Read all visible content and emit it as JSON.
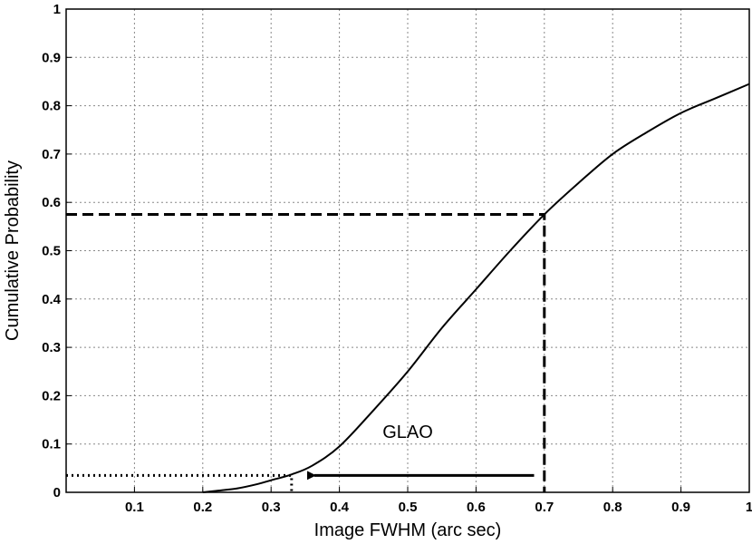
{
  "chart_data": {
    "type": "line",
    "title": "",
    "xlabel": "Image FWHM (arc sec)",
    "ylabel": "Cumulative Probability",
    "xlim": [
      0,
      1
    ],
    "ylim": [
      0,
      1
    ],
    "grid": true,
    "xticks": [
      0.1,
      0.2,
      0.3,
      0.4,
      0.5,
      0.6,
      0.7,
      0.8,
      0.9,
      1
    ],
    "xtick_labels": [
      "0.1",
      "0.2",
      "0.3",
      "0.4",
      "0.5",
      "0.6",
      "0.7",
      "0.8",
      "0.9",
      "1"
    ],
    "yticks": [
      0,
      0.1,
      0.2,
      0.3,
      0.4,
      0.5,
      0.6,
      0.7,
      0.8,
      0.9,
      1
    ],
    "ytick_labels": [
      "0",
      "0.1",
      "0.2",
      "0.3",
      "0.4",
      "0.5",
      "0.6",
      "0.7",
      "0.8",
      "0.9",
      "1"
    ],
    "series": [
      {
        "name": "",
        "x": [
          0.2,
          0.22,
          0.25,
          0.28,
          0.3,
          0.33,
          0.36,
          0.4,
          0.45,
          0.5,
          0.55,
          0.6,
          0.65,
          0.7,
          0.75,
          0.8,
          0.85,
          0.9,
          0.95,
          1.0
        ],
        "y": [
          0.0,
          0.003,
          0.008,
          0.017,
          0.025,
          0.037,
          0.055,
          0.095,
          0.17,
          0.25,
          0.34,
          0.42,
          0.5,
          0.575,
          0.64,
          0.7,
          0.745,
          0.785,
          0.815,
          0.845
        ]
      }
    ],
    "reference_lines": [
      {
        "style": "dashed",
        "from": [
          0,
          0.575
        ],
        "corner": [
          0.7,
          0.575
        ],
        "to": [
          0.7,
          0
        ]
      },
      {
        "style": "dotted",
        "from": [
          0,
          0.035
        ],
        "corner": [
          0.33,
          0.035
        ],
        "to": [
          0.33,
          0
        ]
      }
    ],
    "annotation": {
      "text": "GLAO",
      "at": [
        0.5,
        0.075
      ],
      "arrow_from": [
        0.685,
        0.035
      ],
      "arrow_to": [
        0.35,
        0.035
      ]
    }
  }
}
